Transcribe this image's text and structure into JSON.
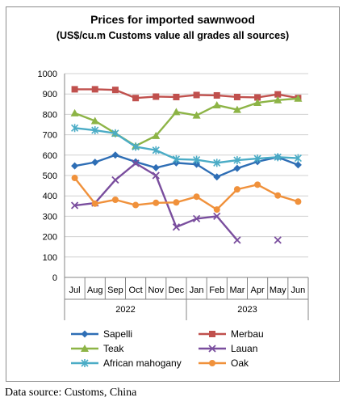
{
  "chart_data": {
    "type": "line",
    "title": "Prices for imported sawnwood",
    "subtitle": "(US$/cu.m Customs value all grades all sources)",
    "categories": [
      "Jul",
      "Aug",
      "Sep",
      "Oct",
      "Nov",
      "Dec",
      "Jan",
      "Feb",
      "Mar",
      "Apr",
      "May",
      "Jun"
    ],
    "year_groups": [
      {
        "label": "2022",
        "start": 0,
        "end": 5
      },
      {
        "label": "2023",
        "start": 6,
        "end": 11
      }
    ],
    "ylim": [
      0,
      1000
    ],
    "yticks": [
      0,
      100,
      200,
      300,
      400,
      500,
      600,
      700,
      800,
      900,
      1000
    ],
    "grid": true,
    "legend_position": "bottom",
    "series": [
      {
        "name": "Sapelli",
        "color": "#2e6eb5",
        "marker": "diamond",
        "values": [
          547,
          565,
          600,
          567,
          538,
          562,
          555,
          493,
          535,
          568,
          590,
          552
        ]
      },
      {
        "name": "Merbau",
        "color": "#c0504d",
        "marker": "square",
        "values": [
          923,
          923,
          920,
          880,
          887,
          885,
          895,
          893,
          885,
          883,
          898,
          880
        ]
      },
      {
        "name": "Teak",
        "color": "#8db446",
        "marker": "triangle",
        "values": [
          806,
          768,
          707,
          645,
          695,
          812,
          795,
          845,
          823,
          857,
          870,
          878
        ]
      },
      {
        "name": "Lauan",
        "color": "#7a4e9e",
        "marker": "x",
        "values": [
          353,
          365,
          478,
          560,
          500,
          247,
          288,
          300,
          183,
          null,
          183,
          null
        ]
      },
      {
        "name": "African mahogany",
        "color": "#4bacc6",
        "marker": "star",
        "values": [
          733,
          722,
          707,
          641,
          624,
          580,
          577,
          562,
          575,
          583,
          590,
          585
        ]
      },
      {
        "name": "Oak",
        "color": "#f0913b",
        "marker": "circle",
        "values": [
          488,
          362,
          381,
          355,
          366,
          368,
          396,
          333,
          432,
          455,
          402,
          372
        ]
      }
    ]
  },
  "source_note": "Data source: Customs, China"
}
